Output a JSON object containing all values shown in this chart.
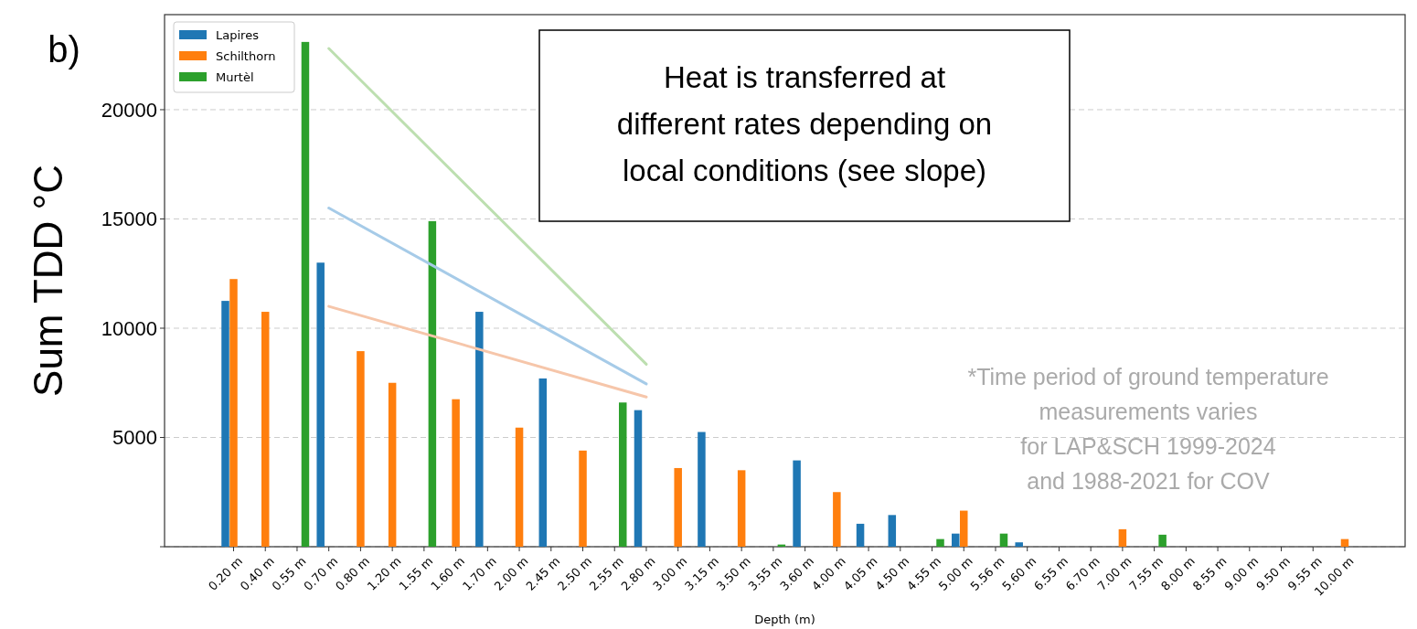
{
  "chart_data": {
    "type": "bar",
    "xlabel": "Depth (m)",
    "ylabel": "Sum TDD °C",
    "categories": [
      "0.20 m",
      "0.40 m",
      "0.55 m",
      "0.70 m",
      "0.80 m",
      "1.20 m",
      "1.55 m",
      "1.60 m",
      "1.70 m",
      "2.00 m",
      "2.45 m",
      "2.50 m",
      "2.55 m",
      "2.80 m",
      "3.00 m",
      "3.15 m",
      "3.50 m",
      "3.55 m",
      "3.60 m",
      "4.00 m",
      "4.05 m",
      "4.50 m",
      "4.55 m",
      "5.00 m",
      "5.56 m",
      "5.60 m",
      "6.55 m",
      "6.70 m",
      "7.00 m",
      "7.55 m",
      "8.00 m",
      "8.55 m",
      "9.00 m",
      "9.50 m",
      "9.55 m",
      "10.00 m"
    ],
    "series": [
      {
        "name": "Lapires",
        "color": "#1f77b4",
        "values": [
          11250,
          null,
          null,
          13000,
          null,
          null,
          null,
          null,
          10750,
          null,
          7700,
          null,
          null,
          6250,
          null,
          5250,
          null,
          null,
          3950,
          null,
          1050,
          1450,
          null,
          600,
          null,
          200,
          null,
          null,
          null,
          null,
          null,
          null,
          null,
          null,
          null,
          null
        ]
      },
      {
        "name": "Schilthorn",
        "color": "#ff7f0e",
        "values": [
          12250,
          10750,
          null,
          null,
          8950,
          7500,
          null,
          6750,
          null,
          5450,
          null,
          4400,
          null,
          null,
          3600,
          null,
          3500,
          null,
          null,
          2500,
          null,
          null,
          null,
          1650,
          null,
          null,
          null,
          null,
          800,
          null,
          null,
          null,
          null,
          null,
          null,
          350
        ]
      },
      {
        "name": "Murtèl",
        "color": "#2ca02c",
        "values": [
          null,
          null,
          23100,
          null,
          null,
          null,
          14900,
          null,
          null,
          null,
          null,
          null,
          6600,
          null,
          null,
          null,
          null,
          100,
          null,
          null,
          null,
          null,
          350,
          null,
          600,
          null,
          null,
          null,
          null,
          550,
          null,
          null,
          null,
          null,
          null,
          null
        ]
      },
      {
        "type": "line",
        "color": "#bddfb0",
        "x": [
          "0.70 m",
          "2.80 m"
        ],
        "values": [
          22800,
          8350
        ]
      },
      {
        "type": "line",
        "color": "#a6cbe8",
        "x": [
          "0.70 m",
          "2.80 m"
        ],
        "values": [
          15500,
          7450
        ]
      },
      {
        "type": "line",
        "color": "#f6c6aa",
        "x": [
          "0.70 m",
          "2.80 m"
        ],
        "values": [
          11000,
          6850
        ]
      }
    ],
    "ylim": [
      0,
      24350
    ],
    "yticks": [
      {
        "value": 0,
        "label": null
      },
      5000,
      10000,
      15000,
      20000
    ],
    "grid": "y",
    "legend": "top left",
    "annotations": [
      "b)",
      "Heat is transferred at\ndifferent rates depending on\nlocal conditions (see slope)",
      "*Time period of ground temperature\nmeasurements varies\nfor LAP&SCH 1999-2024\nand 1988-2021 for COV"
    ]
  }
}
